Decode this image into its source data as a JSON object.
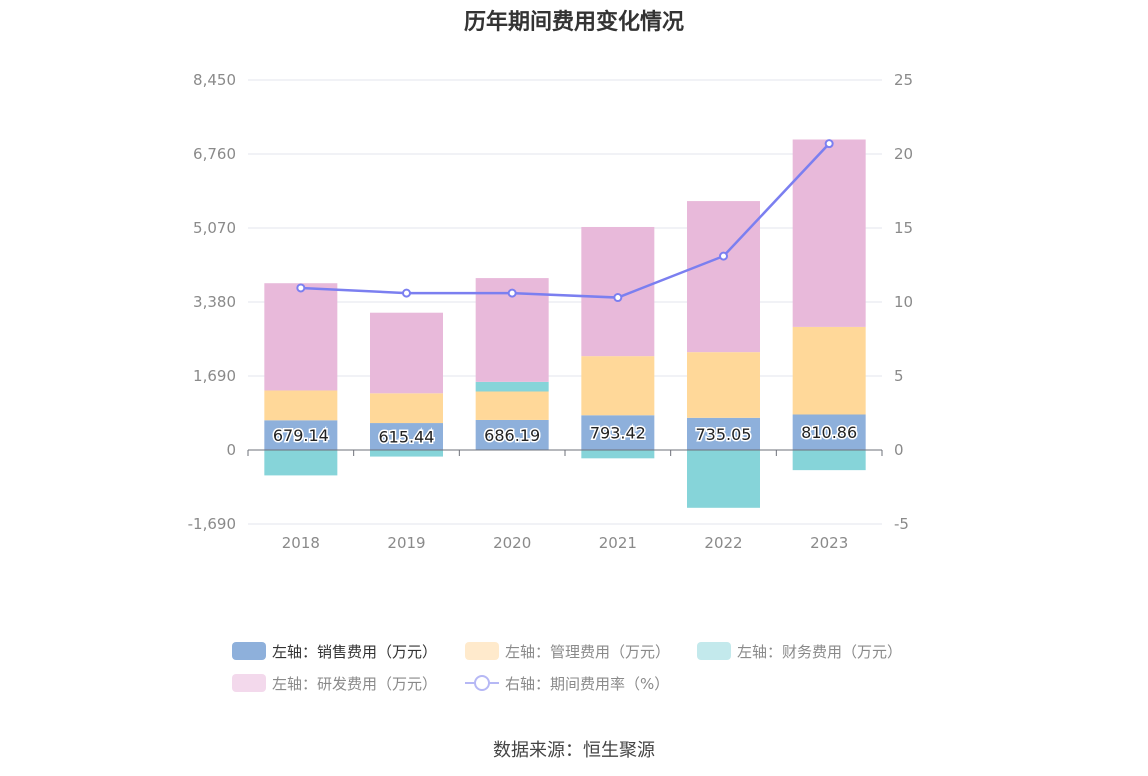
{
  "title": "历年期间费用变化情况",
  "source": "数据来源：恒生聚源",
  "chart_data": {
    "type": "bar",
    "stacked": true,
    "categories": [
      "2018",
      "2019",
      "2020",
      "2021",
      "2022",
      "2023"
    ],
    "left_axis": {
      "min": -1690,
      "max": 8450,
      "ticks": [
        "8,450",
        "6,760",
        "5,070",
        "3,380",
        "1,690",
        "0",
        "-1,690"
      ]
    },
    "right_axis": {
      "min": -5,
      "max": 25,
      "ticks": [
        "25",
        "20",
        "15",
        "10",
        "5",
        "0",
        "-5"
      ]
    },
    "series": [
      {
        "name": "左轴：销售费用（万元）",
        "type": "bar",
        "axis": "left",
        "color": "#8eb0db",
        "values": [
          679.14,
          615.44,
          686.19,
          793.42,
          735.05,
          810.86
        ],
        "labels": [
          "679.14",
          "615.44",
          "686.19",
          "793.42",
          "735.05",
          "810.86"
        ]
      },
      {
        "name": "左轴：管理费用（万元）",
        "type": "bar",
        "axis": "left",
        "color": "#ffd899",
        "values": [
          680,
          680,
          650,
          1350,
          1500,
          2000
        ]
      },
      {
        "name": "左轴：财务费用（万元）",
        "type": "bar",
        "axis": "left",
        "color": "#86d4d9",
        "values": [
          -580,
          -150,
          220,
          -190,
          -1320,
          -460
        ]
      },
      {
        "name": "左轴：研发费用（万元）",
        "type": "bar",
        "axis": "left",
        "color": "#e8b9da",
        "values": [
          2450,
          1840,
          2370,
          2950,
          3450,
          4280
        ]
      },
      {
        "name": "右轴：期间费用率（%）",
        "type": "line",
        "axis": "right",
        "color": "#7b7ff0",
        "values": [
          10.95,
          10.6,
          10.6,
          10.3,
          13.1,
          20.7
        ]
      }
    ],
    "grid": true,
    "legend_position": "bottom"
  }
}
